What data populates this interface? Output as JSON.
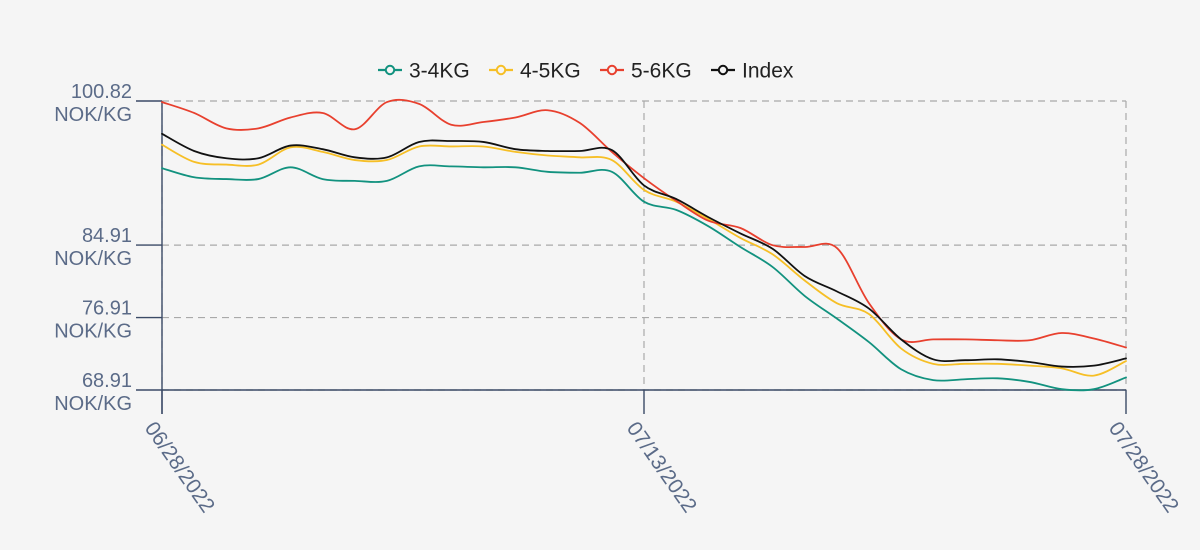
{
  "chart_data": {
    "type": "line",
    "title": "",
    "xlabel": "",
    "ylabel": "",
    "unit": "NOK/KG",
    "x_start": "06/28/2022",
    "x_end": "07/28/2022",
    "xticks": [
      "06/28/2022",
      "07/13/2022",
      "07/28/2022"
    ],
    "yticks": [
      68.91,
      76.91,
      84.91,
      100.82
    ],
    "ylim": [
      68.91,
      100.82
    ],
    "grid": true,
    "legend_position": "top-center",
    "x": [
      "06/28/2022",
      "06/29/2022",
      "06/30/2022",
      "07/01/2022",
      "07/02/2022",
      "07/03/2022",
      "07/04/2022",
      "07/05/2022",
      "07/06/2022",
      "07/07/2022",
      "07/08/2022",
      "07/09/2022",
      "07/10/2022",
      "07/11/2022",
      "07/12/2022",
      "07/13/2022",
      "07/14/2022",
      "07/15/2022",
      "07/16/2022",
      "07/17/2022",
      "07/18/2022",
      "07/19/2022",
      "07/20/2022",
      "07/21/2022",
      "07/22/2022",
      "07/23/2022",
      "07/24/2022",
      "07/25/2022",
      "07/26/2022",
      "07/27/2022",
      "07/28/2022"
    ],
    "series": [
      {
        "name": "3-4KG",
        "color": "#12927f",
        "values": [
          93.4,
          92.4,
          92.2,
          92.2,
          93.5,
          92.2,
          92.0,
          92.0,
          93.6,
          93.6,
          93.5,
          93.5,
          93.0,
          92.9,
          93.0,
          89.7,
          88.8,
          87.0,
          84.7,
          82.5,
          79.3,
          76.8,
          74.2,
          71.2,
          70.0,
          70.1,
          70.2,
          69.8,
          69.0,
          69.0,
          70.3
        ]
      },
      {
        "name": "4-5KG",
        "color": "#f6bf26",
        "values": [
          96.0,
          94.1,
          93.8,
          93.8,
          95.7,
          95.2,
          94.3,
          94.3,
          95.8,
          95.8,
          95.8,
          95.2,
          94.8,
          94.6,
          94.3,
          91.0,
          89.7,
          87.8,
          85.7,
          83.9,
          81.0,
          78.5,
          77.3,
          73.5,
          71.8,
          71.8,
          71.8,
          71.6,
          71.3,
          70.5,
          72.1
        ]
      },
      {
        "name": "5-6KG",
        "color": "#e8402e",
        "values": [
          100.7,
          99.5,
          97.8,
          97.8,
          99.0,
          99.5,
          97.7,
          100.7,
          100.5,
          98.2,
          98.5,
          99.0,
          99.8,
          98.4,
          95.2,
          92.3,
          89.8,
          87.6,
          86.8,
          84.9,
          84.7,
          84.6,
          78.5,
          74.5,
          74.5,
          74.5,
          74.4,
          74.4,
          75.2,
          74.6,
          73.6
        ]
      },
      {
        "name": "Index",
        "color": "#111111",
        "values": [
          97.2,
          95.3,
          94.5,
          94.5,
          95.9,
          95.5,
          94.6,
          94.6,
          96.3,
          96.4,
          96.3,
          95.5,
          95.3,
          95.3,
          95.4,
          91.5,
          90.0,
          88.0,
          86.2,
          84.5,
          81.5,
          79.8,
          77.9,
          74.5,
          72.3,
          72.2,
          72.3,
          72.0,
          71.5,
          71.6,
          72.4
        ]
      }
    ]
  }
}
